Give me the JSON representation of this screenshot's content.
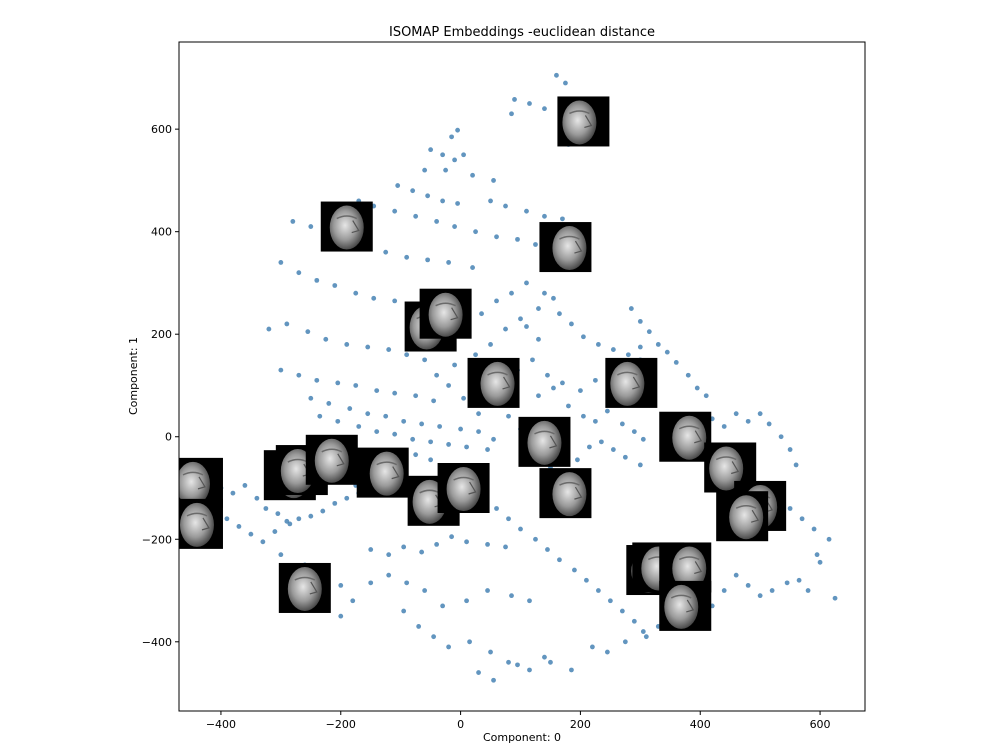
{
  "chart_data": {
    "type": "scatter",
    "title": "ISOMAP Embeddings -euclidean distance",
    "xlabel": "Component: 0",
    "ylabel": "Component: 1",
    "xlim": [
      -470,
      675
    ],
    "ylim": [
      -535,
      770
    ],
    "xticks": [
      -400,
      -200,
      0,
      200,
      400,
      600
    ],
    "yticks": [
      -400,
      -200,
      0,
      200,
      400,
      600
    ],
    "xtick_labels": [
      "−400",
      "−200",
      "0",
      "200",
      "400",
      "600"
    ],
    "ytick_labels": [
      "−400",
      "−200",
      "0",
      "200",
      "400",
      "600"
    ],
    "grid": false,
    "point_color": "#4682b4",
    "points": [
      [
        160,
        705
      ],
      [
        175,
        690
      ],
      [
        90,
        658
      ],
      [
        115,
        650
      ],
      [
        140,
        640
      ],
      [
        85,
        630
      ],
      [
        190,
        615
      ],
      [
        200,
        590
      ],
      [
        180,
        570
      ],
      [
        -5,
        598
      ],
      [
        -15,
        585
      ],
      [
        -50,
        560
      ],
      [
        -30,
        550
      ],
      [
        -10,
        540
      ],
      [
        5,
        550
      ],
      [
        -60,
        520
      ],
      [
        -25,
        520
      ],
      [
        20,
        510
      ],
      [
        55,
        500
      ],
      [
        -105,
        490
      ],
      [
        -80,
        480
      ],
      [
        -55,
        470
      ],
      [
        -30,
        460
      ],
      [
        -5,
        455
      ],
      [
        50,
        460
      ],
      [
        75,
        450
      ],
      [
        110,
        440
      ],
      [
        140,
        430
      ],
      [
        170,
        425
      ],
      [
        -170,
        460
      ],
      [
        -145,
        450
      ],
      [
        -110,
        440
      ],
      [
        -75,
        430
      ],
      [
        -40,
        420
      ],
      [
        -10,
        410
      ],
      [
        25,
        400
      ],
      [
        60,
        390
      ],
      [
        95,
        385
      ],
      [
        125,
        375
      ],
      [
        -280,
        420
      ],
      [
        -250,
        410
      ],
      [
        -220,
        400
      ],
      [
        -190,
        380
      ],
      [
        -160,
        370
      ],
      [
        -125,
        360
      ],
      [
        -90,
        350
      ],
      [
        -55,
        345
      ],
      [
        -20,
        340
      ],
      [
        20,
        330
      ],
      [
        -300,
        340
      ],
      [
        -270,
        320
      ],
      [
        -240,
        305
      ],
      [
        -210,
        295
      ],
      [
        -175,
        280
      ],
      [
        -145,
        270
      ],
      [
        -110,
        265
      ],
      [
        -80,
        250
      ],
      [
        -45,
        240
      ],
      [
        -320,
        210
      ],
      [
        -290,
        220
      ],
      [
        -255,
        205
      ],
      [
        -225,
        190
      ],
      [
        -190,
        180
      ],
      [
        -155,
        175
      ],
      [
        -120,
        170
      ],
      [
        -90,
        160
      ],
      [
        -60,
        150
      ],
      [
        -300,
        130
      ],
      [
        -270,
        120
      ],
      [
        -240,
        110
      ],
      [
        -205,
        105
      ],
      [
        -175,
        100
      ],
      [
        -140,
        90
      ],
      [
        -110,
        85
      ],
      [
        -75,
        80
      ],
      [
        -45,
        70
      ],
      [
        -250,
        75
      ],
      [
        -220,
        65
      ],
      [
        -185,
        55
      ],
      [
        -155,
        45
      ],
      [
        -125,
        40
      ],
      [
        -95,
        30
      ],
      [
        -65,
        25
      ],
      [
        -35,
        20
      ],
      [
        0,
        15
      ],
      [
        30,
        10
      ],
      [
        -235,
        40
      ],
      [
        -205,
        30
      ],
      [
        -170,
        20
      ],
      [
        -140,
        10
      ],
      [
        -110,
        5
      ],
      [
        -80,
        -5
      ],
      [
        -50,
        -10
      ],
      [
        -20,
        -15
      ],
      [
        10,
        -20
      ],
      [
        45,
        -25
      ],
      [
        -440,
        -70
      ],
      [
        -420,
        -90
      ],
      [
        -400,
        -100
      ],
      [
        -380,
        -110
      ],
      [
        -360,
        -95
      ],
      [
        -340,
        -120
      ],
      [
        -325,
        -140
      ],
      [
        -305,
        -150
      ],
      [
        -290,
        -165
      ],
      [
        -270,
        -160
      ],
      [
        -250,
        -155
      ],
      [
        -230,
        -145
      ],
      [
        -210,
        -130
      ],
      [
        -190,
        -120
      ],
      [
        -170,
        -110
      ],
      [
        -150,
        -100
      ],
      [
        -430,
        -125
      ],
      [
        -410,
        -140
      ],
      [
        -390,
        -160
      ],
      [
        -370,
        -175
      ],
      [
        -350,
        -190
      ],
      [
        -330,
        -205
      ],
      [
        -310,
        -185
      ],
      [
        -285,
        -170
      ],
      [
        -150,
        -220
      ],
      [
        -120,
        -230
      ],
      [
        -95,
        -215
      ],
      [
        -65,
        -225
      ],
      [
        -40,
        -210
      ],
      [
        -15,
        -195
      ],
      [
        10,
        -205
      ],
      [
        45,
        -210
      ],
      [
        75,
        -215
      ],
      [
        -150,
        -285
      ],
      [
        -120,
        -270
      ],
      [
        -90,
        -285
      ],
      [
        -60,
        -300
      ],
      [
        -30,
        -330
      ],
      [
        10,
        -320
      ],
      [
        45,
        -300
      ],
      [
        85,
        -310
      ],
      [
        115,
        -320
      ],
      [
        -95,
        -340
      ],
      [
        -70,
        -370
      ],
      [
        -45,
        -390
      ],
      [
        -20,
        -410
      ],
      [
        15,
        -400
      ],
      [
        50,
        -420
      ],
      [
        80,
        -440
      ],
      [
        115,
        -455
      ],
      [
        150,
        -440
      ],
      [
        30,
        -460
      ],
      [
        55,
        -475
      ],
      [
        95,
        -445
      ],
      [
        140,
        -430
      ],
      [
        185,
        -455
      ],
      [
        220,
        -410
      ],
      [
        245,
        -420
      ],
      [
        275,
        -400
      ],
      [
        305,
        -380
      ],
      [
        120,
        -50
      ],
      [
        150,
        -60
      ],
      [
        175,
        -35
      ],
      [
        195,
        -45
      ],
      [
        215,
        -20
      ],
      [
        235,
        -10
      ],
      [
        255,
        -25
      ],
      [
        275,
        -40
      ],
      [
        300,
        -55
      ],
      [
        130,
        80
      ],
      [
        155,
        95
      ],
      [
        180,
        60
      ],
      [
        205,
        40
      ],
      [
        225,
        30
      ],
      [
        245,
        50
      ],
      [
        270,
        25
      ],
      [
        290,
        10
      ],
      [
        305,
        -5
      ],
      [
        95,
        130
      ],
      [
        120,
        150
      ],
      [
        145,
        120
      ],
      [
        170,
        105
      ],
      [
        200,
        90
      ],
      [
        225,
        110
      ],
      [
        250,
        120
      ],
      [
        275,
        135
      ],
      [
        300,
        150
      ],
      [
        110,
        300
      ],
      [
        140,
        280
      ],
      [
        165,
        240
      ],
      [
        185,
        220
      ],
      [
        205,
        195
      ],
      [
        230,
        180
      ],
      [
        255,
        170
      ],
      [
        280,
        160
      ],
      [
        300,
        175
      ],
      [
        285,
        250
      ],
      [
        300,
        225
      ],
      [
        315,
        205
      ],
      [
        330,
        180
      ],
      [
        345,
        165
      ],
      [
        360,
        145
      ],
      [
        380,
        120
      ],
      [
        395,
        95
      ],
      [
        410,
        80
      ],
      [
        420,
        35
      ],
      [
        440,
        20
      ],
      [
        460,
        45
      ],
      [
        480,
        30
      ],
      [
        500,
        45
      ],
      [
        515,
        25
      ],
      [
        535,
        0
      ],
      [
        550,
        -25
      ],
      [
        560,
        -55
      ],
      [
        470,
        -110
      ],
      [
        490,
        -130
      ],
      [
        505,
        -150
      ],
      [
        520,
        -170
      ],
      [
        535,
        -155
      ],
      [
        550,
        -140
      ],
      [
        570,
        -160
      ],
      [
        590,
        -180
      ],
      [
        595,
        -230
      ],
      [
        600,
        -245
      ],
      [
        615,
        -200
      ],
      [
        625,
        -315
      ],
      [
        580,
        -300
      ],
      [
        565,
        -280
      ],
      [
        545,
        -285
      ],
      [
        520,
        -300
      ],
      [
        500,
        -310
      ],
      [
        480,
        -290
      ],
      [
        460,
        -270
      ],
      [
        440,
        -300
      ],
      [
        420,
        -330
      ],
      [
        400,
        -310
      ],
      [
        380,
        -330
      ],
      [
        360,
        -350
      ],
      [
        330,
        -370
      ],
      [
        310,
        -390
      ],
      [
        290,
        -360
      ],
      [
        270,
        -340
      ],
      [
        250,
        -320
      ],
      [
        230,
        -300
      ],
      [
        210,
        -280
      ],
      [
        190,
        -260
      ],
      [
        165,
        -240
      ],
      [
        145,
        -220
      ],
      [
        125,
        -200
      ],
      [
        100,
        -180
      ],
      [
        80,
        -160
      ],
      [
        60,
        -140
      ],
      [
        40,
        -120
      ],
      [
        20,
        -100
      ],
      [
        0,
        -80
      ],
      [
        -25,
        -60
      ],
      [
        -50,
        -45
      ],
      [
        -75,
        -35
      ],
      [
        -100,
        -50
      ],
      [
        -125,
        -65
      ],
      [
        -150,
        -80
      ],
      [
        -175,
        -95
      ],
      [
        -200,
        -75
      ],
      [
        -225,
        -60
      ],
      [
        60,
        70
      ],
      [
        80,
        40
      ],
      [
        100,
        15
      ],
      [
        55,
        -5
      ],
      [
        30,
        45
      ],
      [
        5,
        75
      ],
      [
        -20,
        100
      ],
      [
        -40,
        120
      ],
      [
        -10,
        140
      ],
      [
        25,
        160
      ],
      [
        50,
        180
      ],
      [
        75,
        210
      ],
      [
        100,
        230
      ],
      [
        130,
        250
      ],
      [
        155,
        270
      ],
      [
        35,
        240
      ],
      [
        60,
        265
      ],
      [
        85,
        280
      ],
      [
        110,
        215
      ],
      [
        130,
        190
      ],
      [
        -300,
        -230
      ],
      [
        -260,
        -250
      ],
      [
        -230,
        -270
      ],
      [
        -200,
        -290
      ],
      [
        -180,
        -320
      ],
      [
        -200,
        -350
      ],
      [
        -240,
        -330
      ],
      [
        -270,
        -310
      ]
    ],
    "thumbnails": [
      {
        "x": 205,
        "y": 615,
        "label": "face"
      },
      {
        "x": -190,
        "y": 410,
        "label": "face"
      },
      {
        "x": 175,
        "y": 370,
        "label": "face"
      },
      {
        "x": -50,
        "y": 215,
        "label": "face"
      },
      {
        "x": -25,
        "y": 240,
        "label": "face"
      },
      {
        "x": 55,
        "y": 105,
        "label": "face"
      },
      {
        "x": 285,
        "y": 105,
        "label": "face"
      },
      {
        "x": 140,
        "y": -10,
        "label": "face"
      },
      {
        "x": 375,
        "y": 0,
        "label": "face"
      },
      {
        "x": 450,
        "y": -60,
        "label": "face"
      },
      {
        "x": 500,
        "y": -135,
        "label": "face"
      },
      {
        "x": 470,
        "y": -155,
        "label": "face"
      },
      {
        "x": -440,
        "y": -90,
        "label": "face"
      },
      {
        "x": -440,
        "y": -170,
        "label": "face"
      },
      {
        "x": -285,
        "y": -75,
        "label": "face"
      },
      {
        "x": -265,
        "y": -65,
        "label": "face"
      },
      {
        "x": -215,
        "y": -45,
        "label": "face"
      },
      {
        "x": -130,
        "y": -70,
        "label": "face"
      },
      {
        "x": -45,
        "y": -125,
        "label": "face"
      },
      {
        "x": 5,
        "y": -100,
        "label": "face"
      },
      {
        "x": 175,
        "y": -110,
        "label": "face"
      },
      {
        "x": 320,
        "y": -260,
        "label": "face"
      },
      {
        "x": 330,
        "y": -255,
        "label": "face"
      },
      {
        "x": 375,
        "y": -255,
        "label": "face"
      },
      {
        "x": 375,
        "y": -330,
        "label": "face"
      },
      {
        "x": -260,
        "y": -295,
        "label": "face"
      }
    ]
  }
}
